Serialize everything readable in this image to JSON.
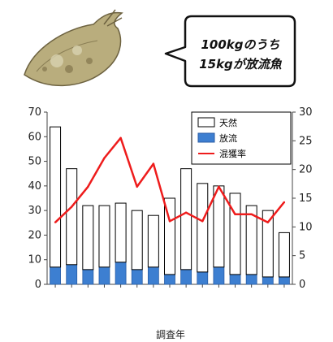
{
  "callout": {
    "line1": "100kgのうち",
    "line2": "15kgが放流魚"
  },
  "chart_data": {
    "type": "bar",
    "categories": [
      "",
      "",
      "",
      "",
      "",
      "",
      "",
      "",
      "",
      "",
      "",
      "",
      "",
      "",
      ""
    ],
    "series": [
      {
        "name": "天然",
        "type": "bar-stacked",
        "values": [
          57,
          39,
          26,
          25,
          24,
          24,
          21,
          31,
          41,
          36,
          33,
          33,
          28,
          27,
          18
        ]
      },
      {
        "name": "放流",
        "type": "bar-stacked",
        "values": [
          7,
          8,
          6,
          7,
          9,
          6,
          7,
          4,
          6,
          5,
          7,
          4,
          4,
          3,
          3
        ]
      },
      {
        "name": "混獲率",
        "type": "line",
        "axis": "right",
        "values": [
          10.8,
          13.5,
          17,
          22,
          25.5,
          17,
          21,
          11,
          12.5,
          11,
          17,
          12.2,
          12.2,
          10.8,
          14.3
        ]
      }
    ],
    "ylim_left": [
      0,
      70
    ],
    "ylim_right": [
      0,
      30
    ],
    "yticks_left": [
      0,
      10,
      20,
      30,
      40,
      50,
      60,
      70
    ],
    "yticks_right": [
      0,
      5,
      10,
      15,
      20,
      25,
      30
    ],
    "xlabel": "調査年",
    "ylabel": "",
    "ylabel_right": "",
    "legend_position": "top-right",
    "colors": {
      "natural_fill": "#ffffff",
      "released_fill": "#3d7fd1",
      "rate_line": "#ee1c1c",
      "outline": "#000000"
    }
  }
}
